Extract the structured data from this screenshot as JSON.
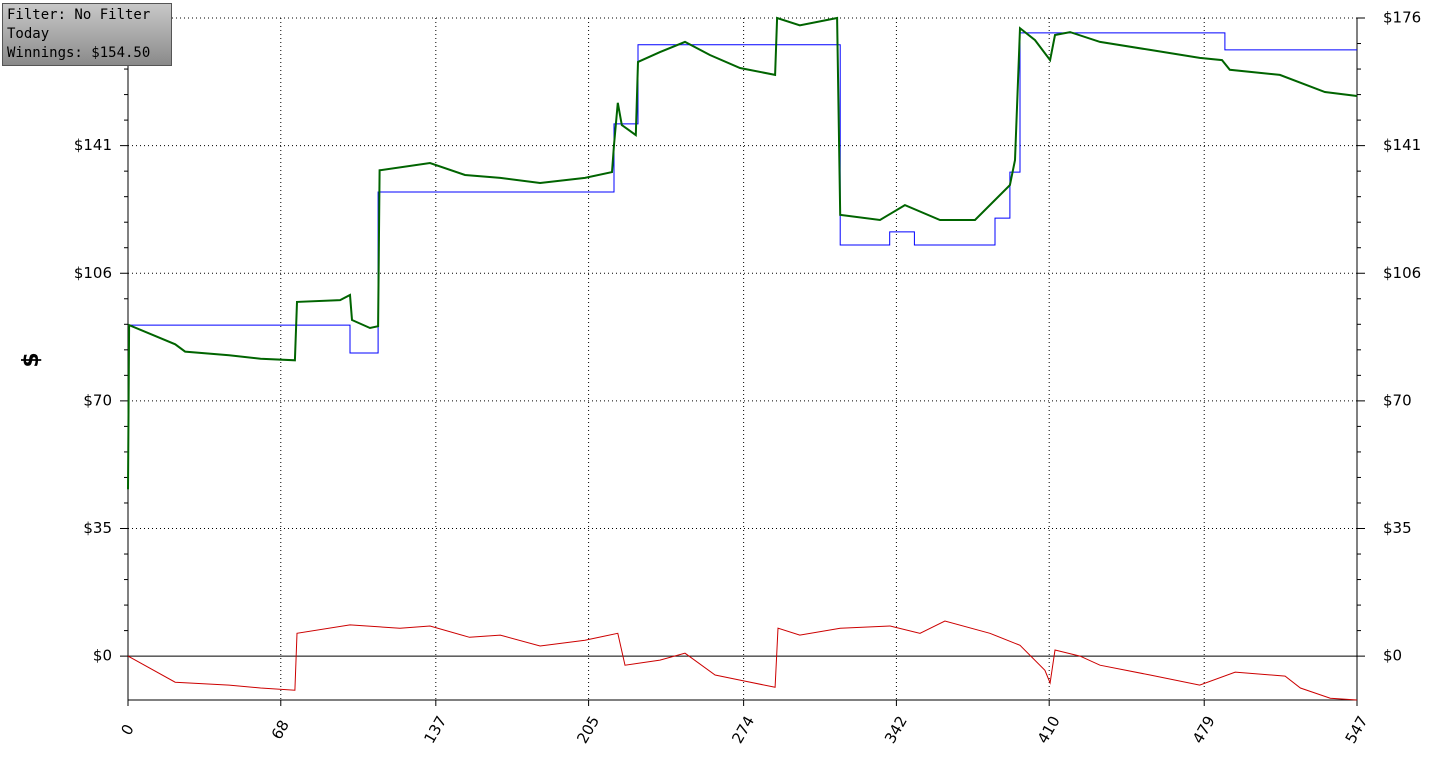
{
  "chart_data": {
    "type": "line",
    "annotations": [
      "Filter: No Filter",
      "Today",
      "Winnings: $154.50"
    ],
    "y_label": "$",
    "xlim": [
      0,
      547
    ],
    "xticks": [
      0,
      68,
      137,
      205,
      274,
      342,
      410,
      479,
      547
    ],
    "ylim": [
      -12.1,
      176
    ],
    "yticks": [
      {
        "value": 0,
        "label": "$0"
      },
      {
        "value": 35.2,
        "label": "$35"
      },
      {
        "value": 70.4,
        "label": "$70"
      },
      {
        "value": 105.6,
        "label": "$106"
      },
      {
        "value": 140.8,
        "label": "$141"
      },
      {
        "value": 176,
        "label": "$176"
      }
    ],
    "grid": true,
    "series": [
      {
        "color": "#006400",
        "x": [
          0,
          0.5,
          21,
          25.4,
          45,
          59,
          74.3,
          75.2,
          94.4,
          98.8,
          99.7,
          107.7,
          111.3,
          112,
          134.4,
          150,
          165.7,
          183.4,
          203.4,
          215.4,
          216.3,
          218,
          219.8,
          226,
          227,
          236.8,
          247.9,
          259,
          272.4,
          288,
          288.9,
          299,
          315.6,
          317,
          334.7,
          345.8,
          361.4,
          377,
          385.9,
          392.5,
          394.8,
          397,
          403.7,
          410.4,
          412.6,
          419.3,
          432.6,
          454.9,
          477,
          486.9,
          490.4,
          512.7,
          532.7,
          547
        ],
        "values": [
          46,
          91.3,
          86,
          84,
          83,
          82,
          81.6,
          97.7,
          98.2,
          99.6,
          92.7,
          90.5,
          91,
          134,
          136,
          132.7,
          131.9,
          130.5,
          131.9,
          133.5,
          141,
          152.6,
          146.5,
          143.7,
          163.9,
          166.6,
          169.4,
          165.8,
          162.2,
          160.3,
          176,
          174,
          176,
          121.7,
          120.3,
          124.4,
          120.3,
          120.3,
          125.8,
          129.9,
          136.8,
          173.2,
          169.9,
          164.4,
          171.3,
          172.1,
          169.4,
          167.2,
          165,
          164.4,
          161.7,
          160.3,
          155.6,
          154.5
        ]
      },
      {
        "color": "#0000ff",
        "x": [
          0,
          98.8,
          98.8,
          111.3,
          111.3,
          216.3,
          216.3,
          227,
          227,
          317,
          317,
          339,
          339,
          350,
          350,
          385.9,
          385.9,
          392.5,
          392.5,
          397,
          397,
          488.2,
          488.2,
          547
        ],
        "values": [
          91.3,
          91.3,
          83.6,
          83.6,
          128,
          128,
          146.8,
          146.8,
          168.6,
          168.6,
          113.4,
          113.4,
          117,
          117,
          113.4,
          113.4,
          120.8,
          120.8,
          133.5,
          133.5,
          171.9,
          171.9,
          167.2,
          167.2
        ]
      },
      {
        "color": "#cc0000",
        "x": [
          0,
          21,
          45,
          59,
          74.3,
          75.2,
          98.8,
          121,
          134.4,
          152,
          165.7,
          183.4,
          203.4,
          218,
          221.2,
          236.8,
          247.9,
          261.3,
          272.4,
          288,
          289.3,
          299,
          317,
          339.2,
          352.5,
          363.6,
          383.6,
          397,
          408.1,
          410.4,
          412.6,
          423.7,
          432.6,
          454.9,
          477,
          492.8,
          515,
          521.8,
          535.1,
          547
        ],
        "values": [
          0,
          -7.2,
          -8,
          -8.8,
          -9.4,
          6.3,
          8.6,
          7.7,
          8.3,
          5.2,
          5.8,
          2.8,
          4.4,
          6.3,
          -2.5,
          -1.1,
          0.8,
          -5.2,
          -6.6,
          -8.6,
          7.7,
          5.8,
          7.7,
          8.3,
          6.3,
          9.7,
          6.3,
          3,
          -3.9,
          -7.4,
          1.7,
          0,
          -2.5,
          -5.2,
          -8,
          -4.4,
          -5.5,
          -8.8,
          -11.6,
          -12.1
        ]
      }
    ]
  }
}
